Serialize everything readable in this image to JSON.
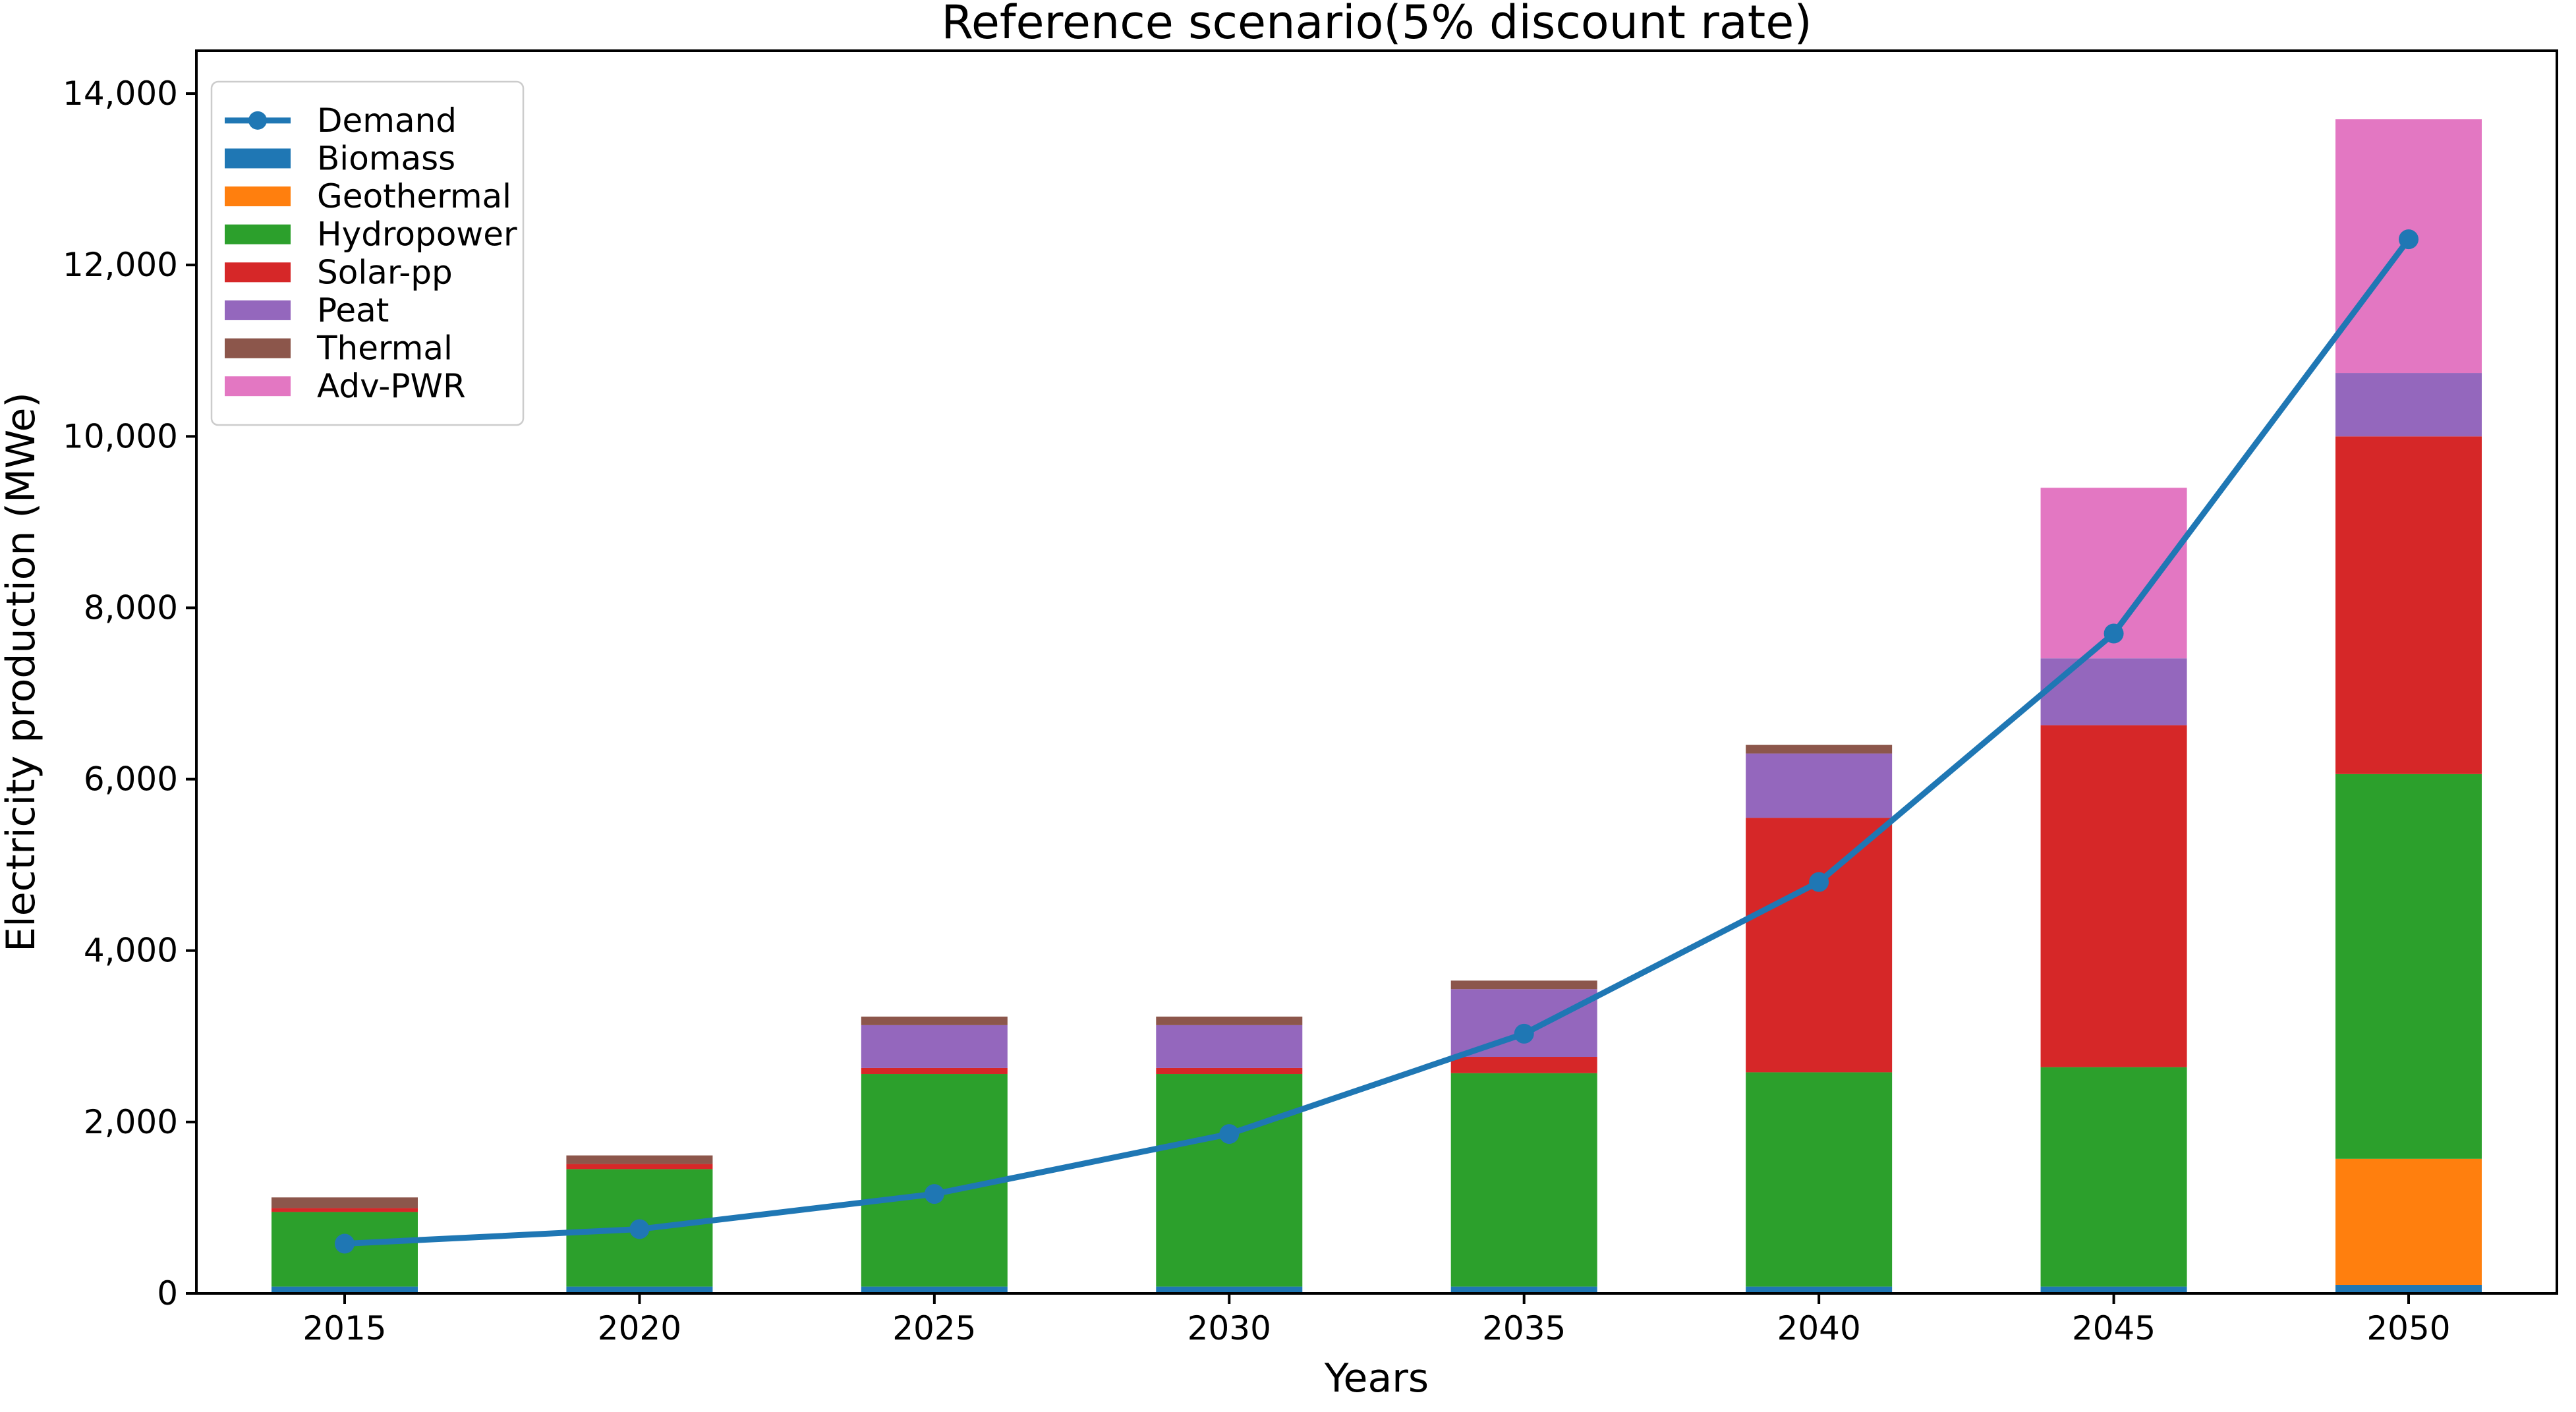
{
  "chart_data": {
    "type": "bar",
    "subtype": "stacked-bar-with-line",
    "title": "Reference scenario(5% discount rate)",
    "xlabel": "Years",
    "ylabel": "Electricity production (MWe)",
    "categories": [
      "2015",
      "2020",
      "2025",
      "2030",
      "2035",
      "2040",
      "2045",
      "2050"
    ],
    "units": "MWe",
    "series": [
      {
        "name": "Biomass",
        "type": "bar",
        "color": "#1f77b4",
        "values": [
          80,
          80,
          80,
          80,
          80,
          80,
          80,
          100
        ]
      },
      {
        "name": "Geothermal",
        "type": "bar",
        "color": "#ff7f0e",
        "values": [
          0,
          0,
          0,
          0,
          0,
          0,
          0,
          1470
        ]
      },
      {
        "name": "Hydropower",
        "type": "bar",
        "color": "#2ca02c",
        "values": [
          870,
          1370,
          2480,
          2480,
          2490,
          2500,
          2560,
          4490
        ]
      },
      {
        "name": "Solar-pp",
        "type": "bar",
        "color": "#d62728",
        "values": [
          45,
          60,
          70,
          70,
          190,
          2970,
          3990,
          3940
        ]
      },
      {
        "name": "Peat",
        "type": "bar",
        "color": "#9467bd",
        "values": [
          0,
          0,
          500,
          500,
          790,
          750,
          780,
          740
        ]
      },
      {
        "name": "Thermal",
        "type": "bar",
        "color": "#8c564b",
        "values": [
          125,
          100,
          100,
          100,
          100,
          100,
          0,
          0
        ]
      },
      {
        "name": "Adv-PWR",
        "type": "bar",
        "color": "#e377c2",
        "values": [
          0,
          0,
          0,
          0,
          0,
          0,
          1990,
          2960
        ]
      }
    ],
    "line_series": {
      "name": "Demand",
      "color": "#1f77b4",
      "marker": "circle",
      "values": [
        580,
        750,
        1160,
        1860,
        3030,
        4800,
        7700,
        12300
      ]
    },
    "bar_totals": [
      1120,
      1610,
      3230,
      3230,
      3650,
      6400,
      9400,
      13700
    ],
    "ylim": [
      0,
      14500
    ],
    "yticks": [
      0,
      2000,
      4000,
      6000,
      8000,
      10000,
      12000,
      14000
    ],
    "ytick_labels": [
      "0",
      "2,000",
      "4,000",
      "6,000",
      "8,000",
      "10,000",
      "12,000",
      "14,000"
    ],
    "grid": false,
    "legend": {
      "position": "upper left",
      "entries": [
        "Demand",
        "Biomass",
        "Geothermal",
        "Hydropower",
        "Solar-pp",
        "Peat",
        "Thermal",
        "Adv-PWR"
      ]
    },
    "colors": {
      "demand_line": "#1f77b4",
      "axis": "#000000",
      "legend_border": "#cccccc",
      "background": "#ffffff"
    }
  }
}
